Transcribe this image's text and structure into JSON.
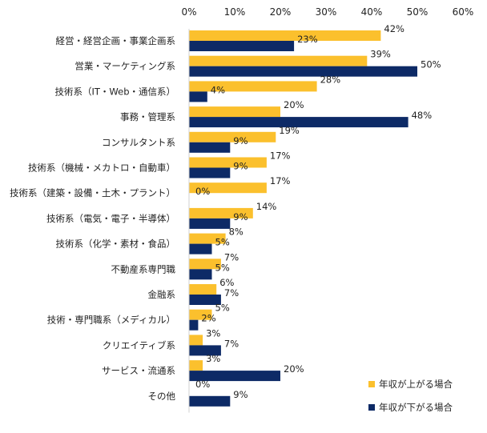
{
  "chart_data": {
    "type": "bar",
    "orientation": "horizontal",
    "xlim": [
      0,
      60
    ],
    "x_ticks": [
      "0%",
      "10%",
      "20%",
      "30%",
      "40%",
      "50%",
      "60%"
    ],
    "grid": false,
    "legend_position": "bottom-right",
    "value_suffix": "%",
    "categories": [
      "経営・経営企画・事業企画系",
      "営業・マーケティング系",
      "技術系（IT・Web・通信系）",
      "事務・管理系",
      "コンサルタント系",
      "技術系（機械・メカトロ・自動車）",
      "技術系（建築・設備・土木・プラント）",
      "技術系（電気・電子・半導体）",
      "技術系（化学・素材・食品）",
      "不動産系専門職",
      "金融系",
      "技術・専門職系（メディカル）",
      "クリエイティブ系",
      "サービス・流通系",
      "その他"
    ],
    "series": [
      {
        "name": "年収が上がる場合",
        "color": "#fbc02d",
        "values": [
          42,
          39,
          28,
          20,
          19,
          17,
          17,
          14,
          8,
          7,
          6,
          5,
          3,
          3,
          0
        ]
      },
      {
        "name": "年収が下がる場合",
        "color": "#0d2a66",
        "values": [
          23,
          50,
          4,
          48,
          9,
          9,
          0,
          9,
          5,
          5,
          7,
          2,
          7,
          20,
          9
        ]
      }
    ]
  }
}
